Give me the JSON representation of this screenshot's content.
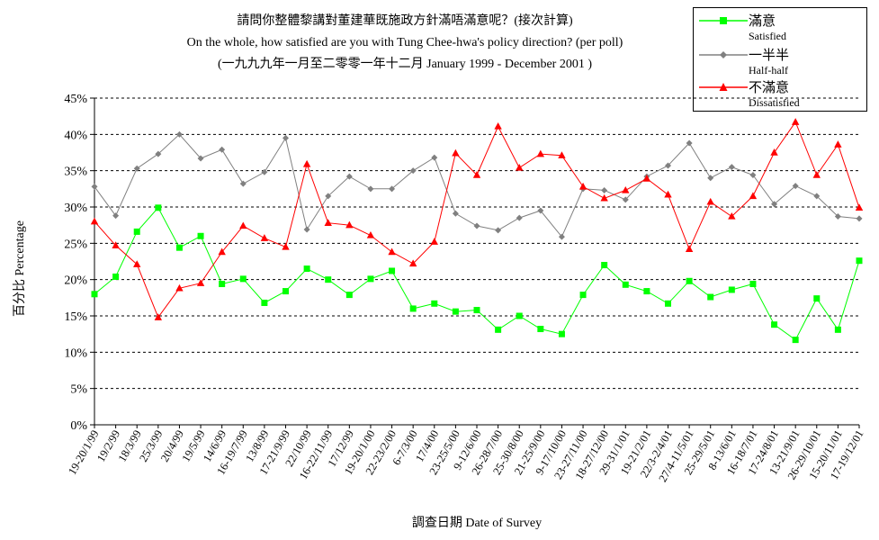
{
  "title": {
    "line1": "請問你整體黎講對董建華既施政方針滿唔滿意呢？(接次計算)",
    "line2": "On the whole, how satisfied are you with Tung Chee-hwa's policy direction? (per poll)",
    "line3": "(一九九九年一月至二零零一年十二月 January 1999 - December 2001 )"
  },
  "legend": [
    {
      "zh": "滿意",
      "en": "Satisfied"
    },
    {
      "zh": "一半半",
      "en": "Half-half"
    },
    {
      "zh": "不滿意",
      "en": "Dissatisfied"
    }
  ],
  "colors": {
    "satisfied": "#00ff00",
    "half_half": "#808080",
    "dissatisfied": "#ff0000"
  },
  "chart_data": {
    "type": "line",
    "ylabel": "百分比 Percentage",
    "xlabel": "調查日期 Date of Survey",
    "ylim": [
      0,
      45
    ],
    "yticks": [
      "0%",
      "5%",
      "10%",
      "15%",
      "20%",
      "25%",
      "30%",
      "35%",
      "40%",
      "45%"
    ],
    "grid": true,
    "legend_position": "top-right",
    "categories": [
      "19-20/1/99",
      "19/2/99",
      "18/3/99",
      "25/3/99",
      "20/4/99",
      "19/5/99",
      "14/6/99",
      "16-19/7/99",
      "13/8/99",
      "17-21/9/99",
      "22/10/99",
      "16-22/11/99",
      "17/12/99",
      "19-20/1/00",
      "22-23/2/00",
      "6-7/3/00",
      "17/4/00",
      "23-25/5/00",
      "9-12/6/00",
      "26-28/7/00",
      "25-30/8/00",
      "21-25/9/00",
      "9-17/10/00",
      "23-27/11/00",
      "18-27/12/00",
      "29-31/1/01",
      "19-21/2/01",
      "22/3-2/4/01",
      "27/4-11/5/01",
      "25-29/5/01",
      "8-13/6/01",
      "16-18/7/01",
      "17-24/8/01",
      "13-21/9/01",
      "26-29/10/01",
      "15-20/11/01",
      "17-19/12/01"
    ],
    "series": [
      {
        "name": "滿意 Satisfied",
        "marker": "square",
        "values": [
          18.0,
          20.4,
          26.6,
          29.9,
          24.4,
          26.0,
          19.4,
          20.1,
          16.8,
          18.4,
          21.5,
          20.0,
          17.9,
          20.1,
          21.2,
          16.0,
          16.7,
          15.6,
          15.8,
          13.1,
          15.0,
          13.2,
          12.5,
          17.9,
          22.0,
          19.3,
          18.4,
          16.7,
          19.8,
          17.6,
          18.6,
          19.4,
          13.8,
          11.7,
          17.4,
          13.1,
          22.6
        ]
      },
      {
        "name": "一半半 Half-half",
        "marker": "diamond",
        "values": [
          32.8,
          28.8,
          35.3,
          37.3,
          40.0,
          36.7,
          37.9,
          33.2,
          34.8,
          39.5,
          26.9,
          31.5,
          34.2,
          32.5,
          32.5,
          35.0,
          36.8,
          29.1,
          27.4,
          26.8,
          28.5,
          29.5,
          25.9,
          32.5,
          32.3,
          31.0,
          34.2,
          35.7,
          38.8,
          34.0,
          35.5,
          34.4,
          30.4,
          32.9,
          31.5,
          28.7,
          28.4
        ]
      },
      {
        "name": "不滿意 Dissatisfied",
        "marker": "triangle",
        "values": [
          28.0,
          24.7,
          22.1,
          14.8,
          18.8,
          19.5,
          23.8,
          27.4,
          25.7,
          24.5,
          35.9,
          27.8,
          27.5,
          26.1,
          23.8,
          22.2,
          25.2,
          37.4,
          34.4,
          41.1,
          35.4,
          37.3,
          37.1,
          32.8,
          31.2,
          32.3,
          33.9,
          31.7,
          24.2,
          30.7,
          28.7,
          31.5,
          37.5,
          41.7,
          34.4,
          38.6,
          29.9
        ]
      }
    ]
  }
}
